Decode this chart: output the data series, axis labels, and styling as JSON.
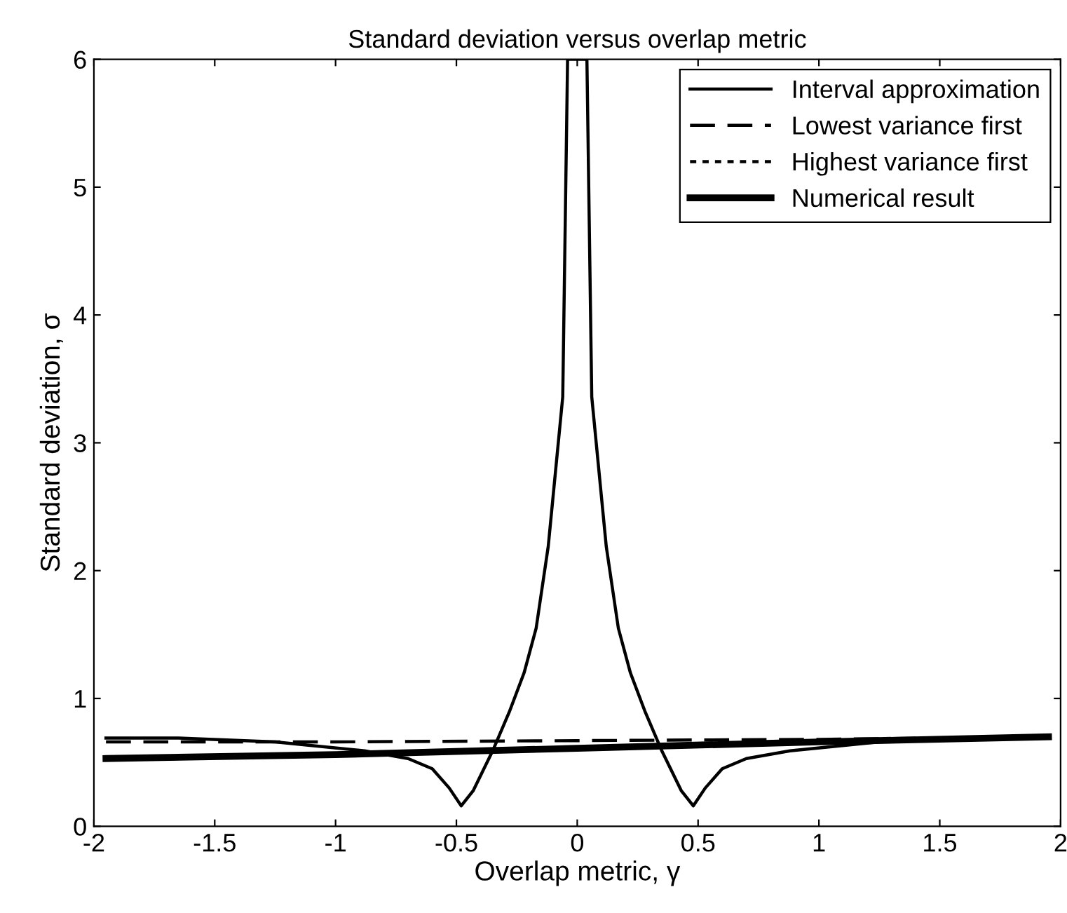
{
  "chart_data": {
    "type": "line",
    "title": "Standard deviation versus overlap metric",
    "xlabel": "Overlap metric, γ",
    "ylabel": "Standard deviation, σ",
    "xlim": [
      -2,
      2
    ],
    "ylim": [
      0,
      6
    ],
    "xticks": [
      -2,
      -1.5,
      -1,
      -0.5,
      0,
      0.5,
      1,
      1.5,
      2
    ],
    "yticks": [
      0,
      1,
      2,
      3,
      4,
      5,
      6
    ],
    "legend": "top right",
    "grid": false,
    "series": [
      {
        "name": "Interval approximation",
        "color": "#000000",
        "line_style": "solid",
        "x": [
          -1.95,
          -1.65,
          -1.25,
          -0.88,
          -0.7,
          -0.6,
          -0.53,
          -0.48,
          -0.43,
          -0.35,
          -0.28,
          -0.22,
          -0.17,
          -0.12,
          -0.06,
          -0.04,
          0.04,
          0.06,
          0.12,
          0.17,
          0.22,
          0.28,
          0.35,
          0.43,
          0.48,
          0.53,
          0.6,
          0.7,
          0.88,
          1.25,
          1.65,
          1.95
        ],
        "values": [
          0.69,
          0.69,
          0.66,
          0.59,
          0.53,
          0.45,
          0.3,
          0.16,
          0.28,
          0.59,
          0.9,
          1.2,
          1.55,
          2.19,
          3.36,
          6,
          6,
          3.36,
          2.19,
          1.55,
          1.2,
          0.9,
          0.59,
          0.28,
          0.16,
          0.3,
          0.45,
          0.53,
          0.59,
          0.66,
          0.69,
          0.7
        ]
      },
      {
        "name": "Lowest variance first",
        "color": "#000000",
        "line_style": "dashed",
        "x": [
          -1.95,
          -1,
          0,
          1,
          1.95
        ],
        "values": [
          0.66,
          0.66,
          0.67,
          0.68,
          0.7
        ]
      },
      {
        "name": "Highest variance first",
        "color": "#000000",
        "line_style": "dotted"
      },
      {
        "name": "Numerical result",
        "color": "#000000",
        "line_style": "solid",
        "x": [
          -1.95,
          -1,
          0,
          1,
          1.95
        ],
        "values": [
          0.53,
          0.56,
          0.61,
          0.66,
          0.7
        ]
      }
    ]
  }
}
